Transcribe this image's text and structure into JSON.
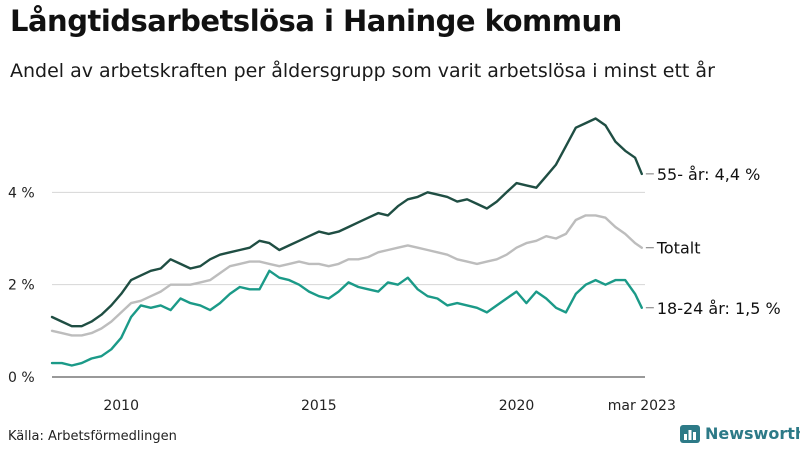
{
  "title": "Långtidsarbetslösa i Haninge kommun",
  "subtitle": "Andel av arbetskraften per åldersgrupp som varit arbetslösa i minst ett år",
  "source": "Källa: Arbetsförmedlingen",
  "brand": {
    "name": "Newsworthy",
    "icon": "bar-chart-icon",
    "color": "#2d7a87"
  },
  "chart_data": {
    "type": "line",
    "xlim": [
      2008.25,
      2023.25
    ],
    "ylim": [
      0,
      6
    ],
    "y_ticks": [
      {
        "value": 0,
        "label": "0 %"
      },
      {
        "value": 2,
        "label": "2 %"
      },
      {
        "value": 4,
        "label": "4 %"
      }
    ],
    "x_ticks": [
      {
        "value": 2010,
        "label": "2010"
      },
      {
        "value": 2015,
        "label": "2015"
      },
      {
        "value": 2020,
        "label": "2020"
      },
      {
        "value": 2023.17,
        "label": "mar 2023"
      }
    ],
    "grid": "horizontal",
    "series": [
      {
        "name": "55- år",
        "end_label": "55- år: 4,4 %",
        "color": "#1f4e43",
        "points": [
          [
            2008.25,
            1.3
          ],
          [
            2008.5,
            1.2
          ],
          [
            2008.75,
            1.1
          ],
          [
            2009.0,
            1.1
          ],
          [
            2009.25,
            1.2
          ],
          [
            2009.5,
            1.35
          ],
          [
            2009.75,
            1.55
          ],
          [
            2010.0,
            1.8
          ],
          [
            2010.25,
            2.1
          ],
          [
            2010.5,
            2.2
          ],
          [
            2010.75,
            2.3
          ],
          [
            2011.0,
            2.35
          ],
          [
            2011.25,
            2.55
          ],
          [
            2011.5,
            2.45
          ],
          [
            2011.75,
            2.35
          ],
          [
            2012.0,
            2.4
          ],
          [
            2012.25,
            2.55
          ],
          [
            2012.5,
            2.65
          ],
          [
            2012.75,
            2.7
          ],
          [
            2013.0,
            2.75
          ],
          [
            2013.25,
            2.8
          ],
          [
            2013.5,
            2.95
          ],
          [
            2013.75,
            2.9
          ],
          [
            2014.0,
            2.75
          ],
          [
            2014.25,
            2.85
          ],
          [
            2014.5,
            2.95
          ],
          [
            2014.75,
            3.05
          ],
          [
            2015.0,
            3.15
          ],
          [
            2015.25,
            3.1
          ],
          [
            2015.5,
            3.15
          ],
          [
            2015.75,
            3.25
          ],
          [
            2016.0,
            3.35
          ],
          [
            2016.25,
            3.45
          ],
          [
            2016.5,
            3.55
          ],
          [
            2016.75,
            3.5
          ],
          [
            2017.0,
            3.7
          ],
          [
            2017.25,
            3.85
          ],
          [
            2017.5,
            3.9
          ],
          [
            2017.75,
            4.0
          ],
          [
            2018.0,
            3.95
          ],
          [
            2018.25,
            3.9
          ],
          [
            2018.5,
            3.8
          ],
          [
            2018.75,
            3.85
          ],
          [
            2019.0,
            3.75
          ],
          [
            2019.25,
            3.65
          ],
          [
            2019.5,
            3.8
          ],
          [
            2019.75,
            4.0
          ],
          [
            2020.0,
            4.2
          ],
          [
            2020.25,
            4.15
          ],
          [
            2020.5,
            4.1
          ],
          [
            2020.75,
            4.35
          ],
          [
            2021.0,
            4.6
          ],
          [
            2021.25,
            5.0
          ],
          [
            2021.5,
            5.4
          ],
          [
            2021.75,
            5.5
          ],
          [
            2022.0,
            5.6
          ],
          [
            2022.25,
            5.45
          ],
          [
            2022.5,
            5.1
          ],
          [
            2022.75,
            4.9
          ],
          [
            2023.0,
            4.75
          ],
          [
            2023.17,
            4.4
          ]
        ]
      },
      {
        "name": "Totalt",
        "end_label": "Totalt",
        "color": "#bdbdbd",
        "points": [
          [
            2008.25,
            1.0
          ],
          [
            2008.5,
            0.95
          ],
          [
            2008.75,
            0.9
          ],
          [
            2009.0,
            0.9
          ],
          [
            2009.25,
            0.95
          ],
          [
            2009.5,
            1.05
          ],
          [
            2009.75,
            1.2
          ],
          [
            2010.0,
            1.4
          ],
          [
            2010.25,
            1.6
          ],
          [
            2010.5,
            1.65
          ],
          [
            2010.75,
            1.75
          ],
          [
            2011.0,
            1.85
          ],
          [
            2011.25,
            2.0
          ],
          [
            2011.5,
            2.0
          ],
          [
            2011.75,
            2.0
          ],
          [
            2012.0,
            2.05
          ],
          [
            2012.25,
            2.1
          ],
          [
            2012.5,
            2.25
          ],
          [
            2012.75,
            2.4
          ],
          [
            2013.0,
            2.45
          ],
          [
            2013.25,
            2.5
          ],
          [
            2013.5,
            2.5
          ],
          [
            2013.75,
            2.45
          ],
          [
            2014.0,
            2.4
          ],
          [
            2014.25,
            2.45
          ],
          [
            2014.5,
            2.5
          ],
          [
            2014.75,
            2.45
          ],
          [
            2015.0,
            2.45
          ],
          [
            2015.25,
            2.4
          ],
          [
            2015.5,
            2.45
          ],
          [
            2015.75,
            2.55
          ],
          [
            2016.0,
            2.55
          ],
          [
            2016.25,
            2.6
          ],
          [
            2016.5,
            2.7
          ],
          [
            2016.75,
            2.75
          ],
          [
            2017.0,
            2.8
          ],
          [
            2017.25,
            2.85
          ],
          [
            2017.5,
            2.8
          ],
          [
            2017.75,
            2.75
          ],
          [
            2018.0,
            2.7
          ],
          [
            2018.25,
            2.65
          ],
          [
            2018.5,
            2.55
          ],
          [
            2018.75,
            2.5
          ],
          [
            2019.0,
            2.45
          ],
          [
            2019.25,
            2.5
          ],
          [
            2019.5,
            2.55
          ],
          [
            2019.75,
            2.65
          ],
          [
            2020.0,
            2.8
          ],
          [
            2020.25,
            2.9
          ],
          [
            2020.5,
            2.95
          ],
          [
            2020.75,
            3.05
          ],
          [
            2021.0,
            3.0
          ],
          [
            2021.25,
            3.1
          ],
          [
            2021.5,
            3.4
          ],
          [
            2021.75,
            3.5
          ],
          [
            2022.0,
            3.5
          ],
          [
            2022.25,
            3.45
          ],
          [
            2022.5,
            3.25
          ],
          [
            2022.75,
            3.1
          ],
          [
            2023.0,
            2.9
          ],
          [
            2023.17,
            2.8
          ]
        ]
      },
      {
        "name": "18-24 år",
        "end_label": "18-24 år: 1,5 %",
        "color": "#1b9a88",
        "points": [
          [
            2008.25,
            0.3
          ],
          [
            2008.5,
            0.3
          ],
          [
            2008.75,
            0.25
          ],
          [
            2009.0,
            0.3
          ],
          [
            2009.25,
            0.4
          ],
          [
            2009.5,
            0.45
          ],
          [
            2009.75,
            0.6
          ],
          [
            2010.0,
            0.85
          ],
          [
            2010.25,
            1.3
          ],
          [
            2010.5,
            1.55
          ],
          [
            2010.75,
            1.5
          ],
          [
            2011.0,
            1.55
          ],
          [
            2011.25,
            1.45
          ],
          [
            2011.5,
            1.7
          ],
          [
            2011.75,
            1.6
          ],
          [
            2012.0,
            1.55
          ],
          [
            2012.25,
            1.45
          ],
          [
            2012.5,
            1.6
          ],
          [
            2012.75,
            1.8
          ],
          [
            2013.0,
            1.95
          ],
          [
            2013.25,
            1.9
          ],
          [
            2013.5,
            1.9
          ],
          [
            2013.75,
            2.3
          ],
          [
            2014.0,
            2.15
          ],
          [
            2014.25,
            2.1
          ],
          [
            2014.5,
            2.0
          ],
          [
            2014.75,
            1.85
          ],
          [
            2015.0,
            1.75
          ],
          [
            2015.25,
            1.7
          ],
          [
            2015.5,
            1.85
          ],
          [
            2015.75,
            2.05
          ],
          [
            2016.0,
            1.95
          ],
          [
            2016.25,
            1.9
          ],
          [
            2016.5,
            1.85
          ],
          [
            2016.75,
            2.05
          ],
          [
            2017.0,
            2.0
          ],
          [
            2017.25,
            2.15
          ],
          [
            2017.5,
            1.9
          ],
          [
            2017.75,
            1.75
          ],
          [
            2018.0,
            1.7
          ],
          [
            2018.25,
            1.55
          ],
          [
            2018.5,
            1.6
          ],
          [
            2018.75,
            1.55
          ],
          [
            2019.0,
            1.5
          ],
          [
            2019.25,
            1.4
          ],
          [
            2019.5,
            1.55
          ],
          [
            2019.75,
            1.7
          ],
          [
            2020.0,
            1.85
          ],
          [
            2020.25,
            1.6
          ],
          [
            2020.5,
            1.85
          ],
          [
            2020.75,
            1.7
          ],
          [
            2021.0,
            1.5
          ],
          [
            2021.25,
            1.4
          ],
          [
            2021.5,
            1.8
          ],
          [
            2021.75,
            2.0
          ],
          [
            2022.0,
            2.1
          ],
          [
            2022.25,
            2.0
          ],
          [
            2022.5,
            2.1
          ],
          [
            2022.75,
            2.1
          ],
          [
            2023.0,
            1.8
          ],
          [
            2023.17,
            1.5
          ]
        ]
      }
    ]
  }
}
